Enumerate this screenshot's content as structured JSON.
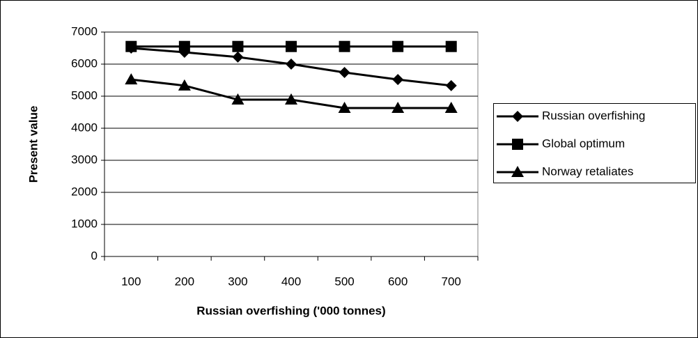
{
  "chart_data": {
    "type": "line",
    "x_label": "Russian overfishing ('000 tonnes)",
    "y_label": "Present value",
    "categories": [
      "100",
      "200",
      "300",
      "400",
      "500",
      "600",
      "700"
    ],
    "series": [
      {
        "name": "Russian overfishing",
        "color": "#000000",
        "marker": "diamond",
        "values": [
          6500,
          6370,
          6220,
          6000,
          5740,
          5520,
          5330
        ]
      },
      {
        "name": "Global optimum",
        "color": "#000000",
        "marker": "square",
        "values": [
          6550,
          6550,
          6550,
          6550,
          6550,
          6550,
          6550
        ]
      },
      {
        "name": "Norway retaliates",
        "color": "#000000",
        "marker": "triangle",
        "values": [
          5520,
          5330,
          4890,
          4890,
          4630,
          4630,
          4630
        ]
      }
    ],
    "ylim": [
      0,
      7000
    ],
    "yticks": [
      0,
      1000,
      2000,
      3000,
      4000,
      5000,
      6000,
      7000
    ],
    "grid": true,
    "legend": "right"
  }
}
